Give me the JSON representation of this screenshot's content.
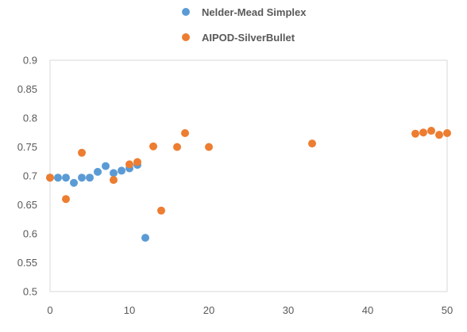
{
  "chart_data": {
    "type": "scatter",
    "xlim": [
      0,
      50
    ],
    "ylim": [
      0.5,
      0.9
    ],
    "x_ticks": [
      0,
      10,
      20,
      30,
      40,
      50
    ],
    "y_ticks": [
      0.5,
      0.55,
      0.6,
      0.65,
      0.7,
      0.75,
      0.8,
      0.85,
      0.9
    ],
    "x_tick_labels": [
      "0",
      "10",
      "20",
      "30",
      "40",
      "50"
    ],
    "y_tick_labels": [
      "0.5",
      "0.55",
      "0.6",
      "0.65",
      "0.7",
      "0.75",
      "0.8",
      "0.85",
      "0.9"
    ],
    "grid": {
      "x": false,
      "y": false
    },
    "legend_position": "top-center",
    "series": [
      {
        "name": "Nelder-Mead Simplex",
        "color": "#5B9BD5",
        "points": [
          {
            "x": 0,
            "y": 0.697
          },
          {
            "x": 1,
            "y": 0.697
          },
          {
            "x": 2,
            "y": 0.697
          },
          {
            "x": 3,
            "y": 0.688
          },
          {
            "x": 4,
            "y": 0.697
          },
          {
            "x": 5,
            "y": 0.697
          },
          {
            "x": 6,
            "y": 0.707
          },
          {
            "x": 7,
            "y": 0.717
          },
          {
            "x": 8,
            "y": 0.705
          },
          {
            "x": 9,
            "y": 0.709
          },
          {
            "x": 10,
            "y": 0.713
          },
          {
            "x": 11,
            "y": 0.719
          },
          {
            "x": 12,
            "y": 0.593
          }
        ]
      },
      {
        "name": "AIPOD-SilverBullet",
        "color": "#ED7D31",
        "points": [
          {
            "x": 0,
            "y": 0.697
          },
          {
            "x": 2,
            "y": 0.66
          },
          {
            "x": 4,
            "y": 0.74
          },
          {
            "x": 8,
            "y": 0.693
          },
          {
            "x": 10,
            "y": 0.72
          },
          {
            "x": 11,
            "y": 0.724
          },
          {
            "x": 13,
            "y": 0.751
          },
          {
            "x": 14,
            "y": 0.64
          },
          {
            "x": 16,
            "y": 0.75
          },
          {
            "x": 17,
            "y": 0.774
          },
          {
            "x": 20,
            "y": 0.75
          },
          {
            "x": 33,
            "y": 0.756
          },
          {
            "x": 46,
            "y": 0.773
          },
          {
            "x": 47,
            "y": 0.775
          },
          {
            "x": 48,
            "y": 0.778
          },
          {
            "x": 49,
            "y": 0.771
          },
          {
            "x": 50,
            "y": 0.774
          }
        ]
      }
    ]
  }
}
